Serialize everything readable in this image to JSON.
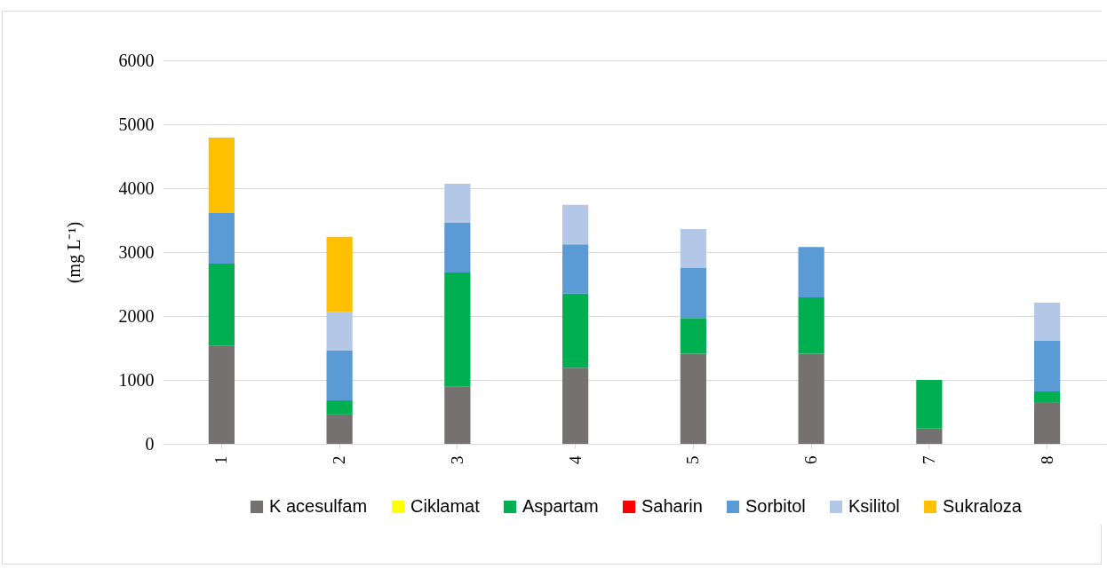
{
  "chart_data": {
    "type": "bar",
    "stacked": true,
    "ylabel": "(mg L⁻¹)",
    "categories": [
      "1",
      "2",
      "3",
      "4",
      "5",
      "6",
      "7",
      "8"
    ],
    "ylim": [
      0,
      6000
    ],
    "yticks": [
      0,
      1000,
      2000,
      3000,
      4000,
      5000,
      6000
    ],
    "grid": "y",
    "legend": "bottom",
    "series": [
      {
        "name": "K acesulfam",
        "color": "#767171",
        "values": [
          1530,
          460,
          900,
          1190,
          1410,
          1410,
          240,
          640
        ]
      },
      {
        "name": "Ciklamat",
        "color": "#ffff00",
        "values": [
          0,
          0,
          0,
          0,
          0,
          0,
          0,
          0
        ]
      },
      {
        "name": "Aspartam",
        "color": "#00b050",
        "values": [
          1290,
          220,
          1780,
          1160,
          560,
          880,
          760,
          180
        ]
      },
      {
        "name": "Saharin",
        "color": "#ff0000",
        "values": [
          0,
          0,
          0,
          0,
          0,
          0,
          0,
          0
        ]
      },
      {
        "name": "Sorbitol",
        "color": "#5b9bd5",
        "values": [
          790,
          780,
          780,
          770,
          780,
          790,
          0,
          790
        ]
      },
      {
        "name": "Ksilitol",
        "color": "#b4c7e7",
        "values": [
          0,
          600,
          610,
          620,
          610,
          0,
          0,
          600
        ]
      },
      {
        "name": "Sukraloza",
        "color": "#ffc000",
        "values": [
          1180,
          1180,
          0,
          0,
          0,
          0,
          0,
          0
        ]
      }
    ]
  }
}
